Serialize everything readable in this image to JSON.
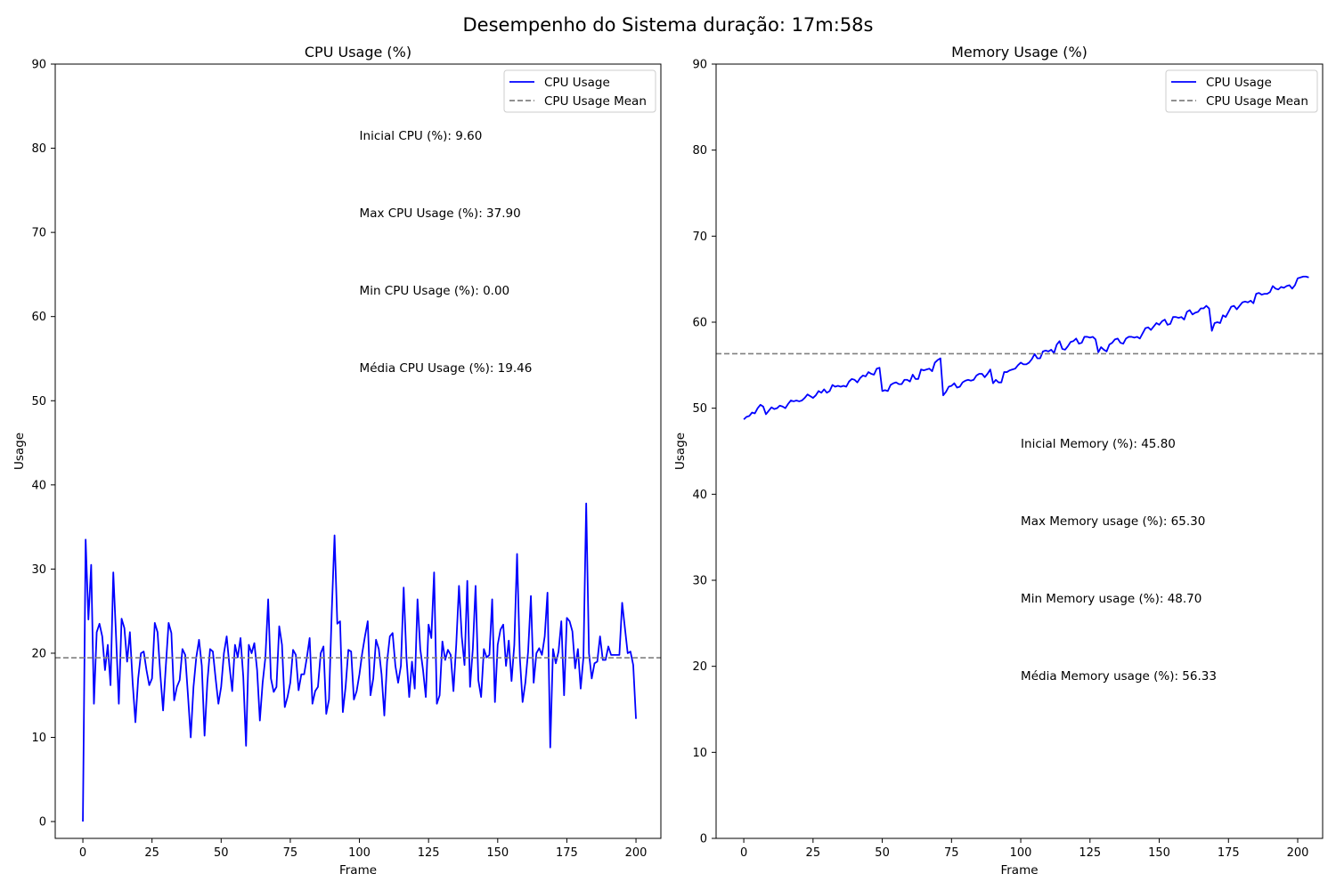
{
  "figure_title": "Desempenho do Sistema duração: 17m:58s",
  "chart_data": [
    {
      "type": "line",
      "title": "CPU Usage (%)",
      "xlabel": "Frame",
      "ylabel": "Usage",
      "xlim": [
        -10,
        209
      ],
      "ylim": [
        -2,
        90
      ],
      "xticks": [
        0,
        25,
        50,
        75,
        100,
        125,
        150,
        175,
        200
      ],
      "yticks": [
        0,
        10,
        20,
        30,
        40,
        50,
        60,
        70,
        80,
        90
      ],
      "grid": false,
      "legend_position": "upper right",
      "series": [
        {
          "name": "CPU Usage",
          "color": "#0000ff",
          "style": "solid",
          "x_start": 0,
          "x_step": 1,
          "values": [
            0.0,
            33.5,
            24.0,
            30.5,
            14.0,
            22.5,
            23.5,
            22.0,
            18.0,
            21.0,
            16.2,
            29.6,
            22.0,
            14.0,
            24.1,
            23.0,
            19.0,
            22.5,
            16.5,
            11.8,
            17.0,
            20.0,
            20.2,
            18.0,
            16.2,
            17.0,
            23.6,
            22.5,
            17.5,
            13.2,
            18.5,
            23.6,
            22.4,
            14.4,
            16.0,
            16.8,
            20.5,
            19.8,
            15.0,
            10.0,
            16.0,
            19.5,
            21.6,
            18.5,
            10.2,
            16.5,
            20.5,
            20.2,
            17.0,
            14.0,
            16.0,
            20.0,
            22.0,
            18.5,
            15.5,
            21.0,
            19.5,
            21.8,
            17.2,
            9.0,
            21.0,
            20.0,
            21.2,
            18.0,
            12.0,
            16.5,
            19.5,
            26.4,
            17.0,
            15.4,
            16.0,
            23.2,
            21.0,
            13.6,
            14.8,
            16.5,
            20.4,
            19.8,
            15.6,
            17.5,
            17.5,
            19.5,
            21.8,
            14.0,
            15.5,
            16.0,
            20.0,
            20.8,
            12.8,
            14.5,
            25.0,
            34.0,
            23.5,
            23.8,
            13.0,
            16.0,
            20.4,
            20.2,
            14.5,
            15.5,
            17.5,
            20.0,
            22.0,
            23.8,
            15.0,
            17.0,
            21.6,
            20.5,
            17.5,
            12.6,
            19.0,
            22.0,
            22.4,
            18.5,
            16.5,
            18.5,
            27.8,
            19.5,
            14.8,
            19.0,
            15.8,
            26.4,
            20.5,
            18.0,
            14.8,
            23.4,
            21.8,
            29.6,
            14.0,
            15.0,
            21.4,
            19.2,
            20.4,
            19.8,
            15.5,
            21.0,
            28.0,
            22.0,
            18.6,
            28.6,
            16.0,
            20.5,
            28.0,
            16.8,
            14.8,
            20.5,
            19.5,
            19.8,
            26.4,
            14.2,
            21.0,
            22.8,
            23.4,
            18.5,
            21.5,
            16.7,
            21.0,
            31.8,
            19.5,
            14.2,
            16.5,
            20.2,
            26.8,
            16.5,
            20.0,
            20.6,
            19.8,
            22.0,
            27.2,
            8.8,
            20.5,
            18.8,
            20.2,
            23.8,
            15.0,
            24.2,
            23.8,
            22.6,
            18.2,
            20.5,
            15.8,
            19.5,
            37.8,
            20.0,
            17.0,
            18.8,
            19.0,
            22.0,
            19.2,
            19.2,
            20.8,
            19.8,
            19.8,
            19.8,
            19.8,
            26.0,
            23.0,
            20.0,
            20.2,
            18.6,
            12.2
          ]
        },
        {
          "name": "CPU Usage Mean",
          "color": "#808080",
          "style": "dashed",
          "constant": 19.46
        }
      ],
      "annotations": [
        {
          "text": "Inicial CPU (%): 9.60",
          "x": 100,
          "y": 81
        },
        {
          "text": "Max CPU Usage (%): 37.90",
          "x": 100,
          "y": 71.8
        },
        {
          "text": "Min CPU Usage (%): 0.00",
          "x": 100,
          "y": 62.6
        },
        {
          "text": "Média CPU Usage (%): 19.46",
          "x": 100,
          "y": 53.4
        }
      ]
    },
    {
      "type": "line",
      "title": "Memory Usage (%)",
      "xlabel": "Frame",
      "ylabel": "Usage",
      "xlim": [
        -10,
        209
      ],
      "ylim": [
        0,
        90
      ],
      "xticks": [
        0,
        25,
        50,
        75,
        100,
        125,
        150,
        175,
        200
      ],
      "yticks": [
        0,
        10,
        20,
        30,
        40,
        50,
        60,
        70,
        80,
        90
      ],
      "grid": false,
      "legend_position": "upper right",
      "series": [
        {
          "name": "CPU Usage",
          "color": "#0000ff",
          "style": "solid",
          "x_start": 0,
          "x_step": 1,
          "values": [
            48.7,
            49.0,
            49.1,
            49.5,
            49.4,
            50.0,
            50.4,
            50.2,
            49.3,
            49.7,
            50.1,
            49.9,
            50.0,
            50.3,
            50.2,
            50.0,
            50.5,
            50.9,
            50.8,
            50.9,
            50.8,
            50.9,
            51.2,
            51.6,
            51.4,
            51.2,
            51.5,
            52.0,
            51.8,
            52.2,
            51.8,
            52.0,
            52.7,
            52.5,
            52.6,
            52.5,
            52.6,
            52.5,
            53.1,
            53.4,
            53.3,
            53.0,
            53.5,
            53.8,
            53.7,
            54.2,
            54.0,
            53.9,
            54.6,
            54.7,
            52.0,
            52.1,
            52.0,
            52.7,
            52.9,
            53.0,
            52.8,
            52.8,
            53.3,
            53.3,
            53.1,
            53.9,
            53.4,
            53.4,
            54.5,
            54.4,
            54.5,
            54.6,
            54.3,
            55.3,
            55.6,
            55.8,
            51.5,
            51.9,
            52.5,
            52.6,
            52.9,
            52.4,
            52.5,
            53.0,
            53.2,
            53.3,
            53.2,
            53.3,
            53.8,
            54.0,
            54.0,
            53.6,
            54.0,
            54.5,
            52.9,
            53.3,
            53.0,
            53.0,
            54.2,
            54.2,
            54.4,
            54.5,
            54.6,
            55.0,
            55.3,
            55.1,
            55.1,
            55.3,
            55.7,
            56.3,
            55.8,
            55.8,
            56.6,
            56.7,
            56.6,
            56.8,
            56.4,
            57.4,
            57.8,
            56.9,
            56.8,
            57.2,
            57.7,
            57.8,
            58.1,
            57.5,
            57.6,
            58.3,
            58.3,
            58.2,
            58.3,
            58.0,
            56.5,
            57.1,
            56.8,
            56.6,
            57.4,
            57.6,
            58.0,
            58.1,
            57.6,
            57.5,
            58.1,
            58.3,
            58.3,
            58.2,
            58.3,
            58.1,
            58.7,
            59.3,
            59.4,
            59.1,
            59.5,
            59.9,
            59.7,
            60.1,
            60.3,
            59.7,
            59.8,
            60.6,
            60.6,
            60.5,
            60.6,
            60.3,
            61.2,
            61.4,
            60.9,
            61.1,
            61.2,
            61.6,
            61.6,
            61.9,
            61.6,
            59.0,
            59.9,
            60.0,
            59.9,
            60.8,
            60.6,
            61.2,
            61.8,
            61.9,
            61.5,
            61.9,
            62.3,
            62.4,
            62.3,
            62.5,
            62.2,
            63.3,
            63.4,
            63.2,
            63.3,
            63.3,
            63.5,
            64.2,
            63.9,
            63.8,
            64.1,
            64.0,
            64.2,
            64.3,
            63.9,
            64.3,
            65.1,
            65.2,
            65.3,
            65.3,
            65.2
          ]
        },
        {
          "name": "CPU Usage Mean",
          "color": "#808080",
          "style": "dashed",
          "constant": 56.33
        }
      ],
      "annotations": [
        {
          "text": "Inicial Memory (%): 45.80",
          "x": 100,
          "y": 45.4
        },
        {
          "text": "Max Memory usage (%): 65.30",
          "x": 100,
          "y": 36.4
        },
        {
          "text": "Min Memory usage (%): 48.70",
          "x": 100,
          "y": 27.4
        },
        {
          "text": "Média Memory usage (%): 56.33",
          "x": 100,
          "y": 18.4
        }
      ]
    }
  ]
}
